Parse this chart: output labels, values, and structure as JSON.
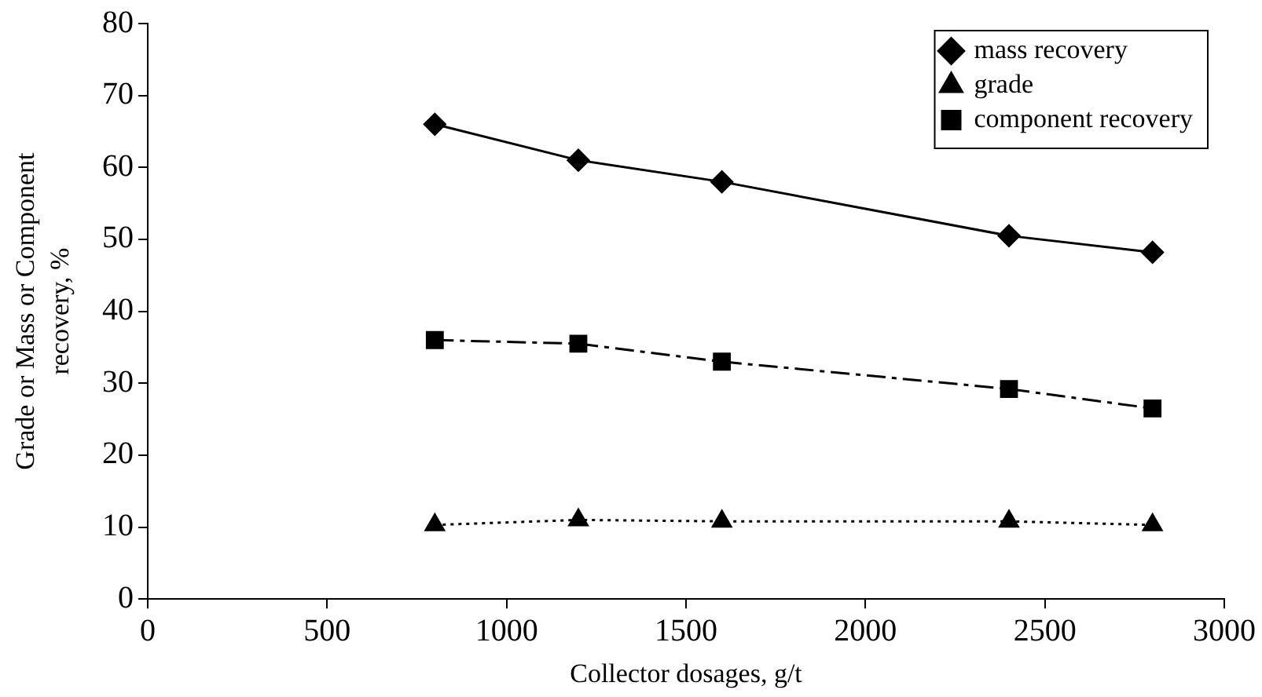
{
  "chart_data": {
    "type": "line",
    "xlabel": "Collector dosages, g/t",
    "ylabel": "Grade or Mass or Component recovery, %",
    "x": [
      800,
      1200,
      1600,
      2400,
      2800
    ],
    "series": [
      {
        "name": "mass recovery",
        "color": "#000000",
        "values": [
          66,
          61,
          58,
          50.5,
          48.2
        ],
        "marker": "diamond",
        "line_style": "solid"
      },
      {
        "name": "grade",
        "color": "#000000",
        "values": [
          10.3,
          11,
          10.8,
          10.8,
          10.3
        ],
        "marker": "triangle",
        "line_style": "dotted"
      },
      {
        "name": "component recovery",
        "color": "#000000",
        "values": [
          36,
          35.5,
          33,
          29.2,
          26.5
        ],
        "marker": "square",
        "line_style": "dashed"
      }
    ],
    "xlim": [
      0,
      3000
    ],
    "xticks": [
      0,
      500,
      1000,
      1500,
      2000,
      2500,
      3000
    ],
    "ylim": [
      0,
      80
    ],
    "yticks": [
      0,
      10,
      20,
      30,
      40,
      50,
      60,
      70,
      80
    ],
    "grid": false,
    "legend": "top right"
  }
}
